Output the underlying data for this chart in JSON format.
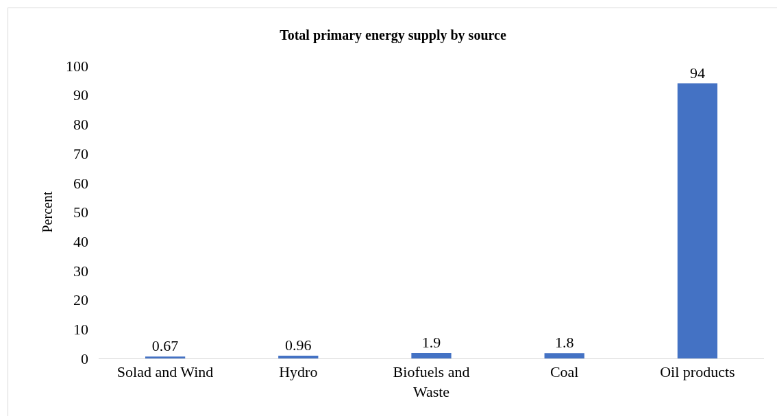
{
  "chart_data": {
    "type": "bar",
    "title": "Total primary energy supply by source",
    "ylabel": "Percent",
    "categories": [
      "Solad and Wind",
      "Hydro",
      "Biofuels and Waste",
      "Coal",
      "Oil products"
    ],
    "values": [
      0.67,
      0.96,
      1.9,
      1.8,
      94
    ],
    "color": "#4472c4",
    "ylim": [
      0,
      100
    ],
    "yticks": [
      0,
      10,
      20,
      30,
      40,
      50,
      60,
      70,
      80,
      90,
      100
    ],
    "data_labels": true
  }
}
